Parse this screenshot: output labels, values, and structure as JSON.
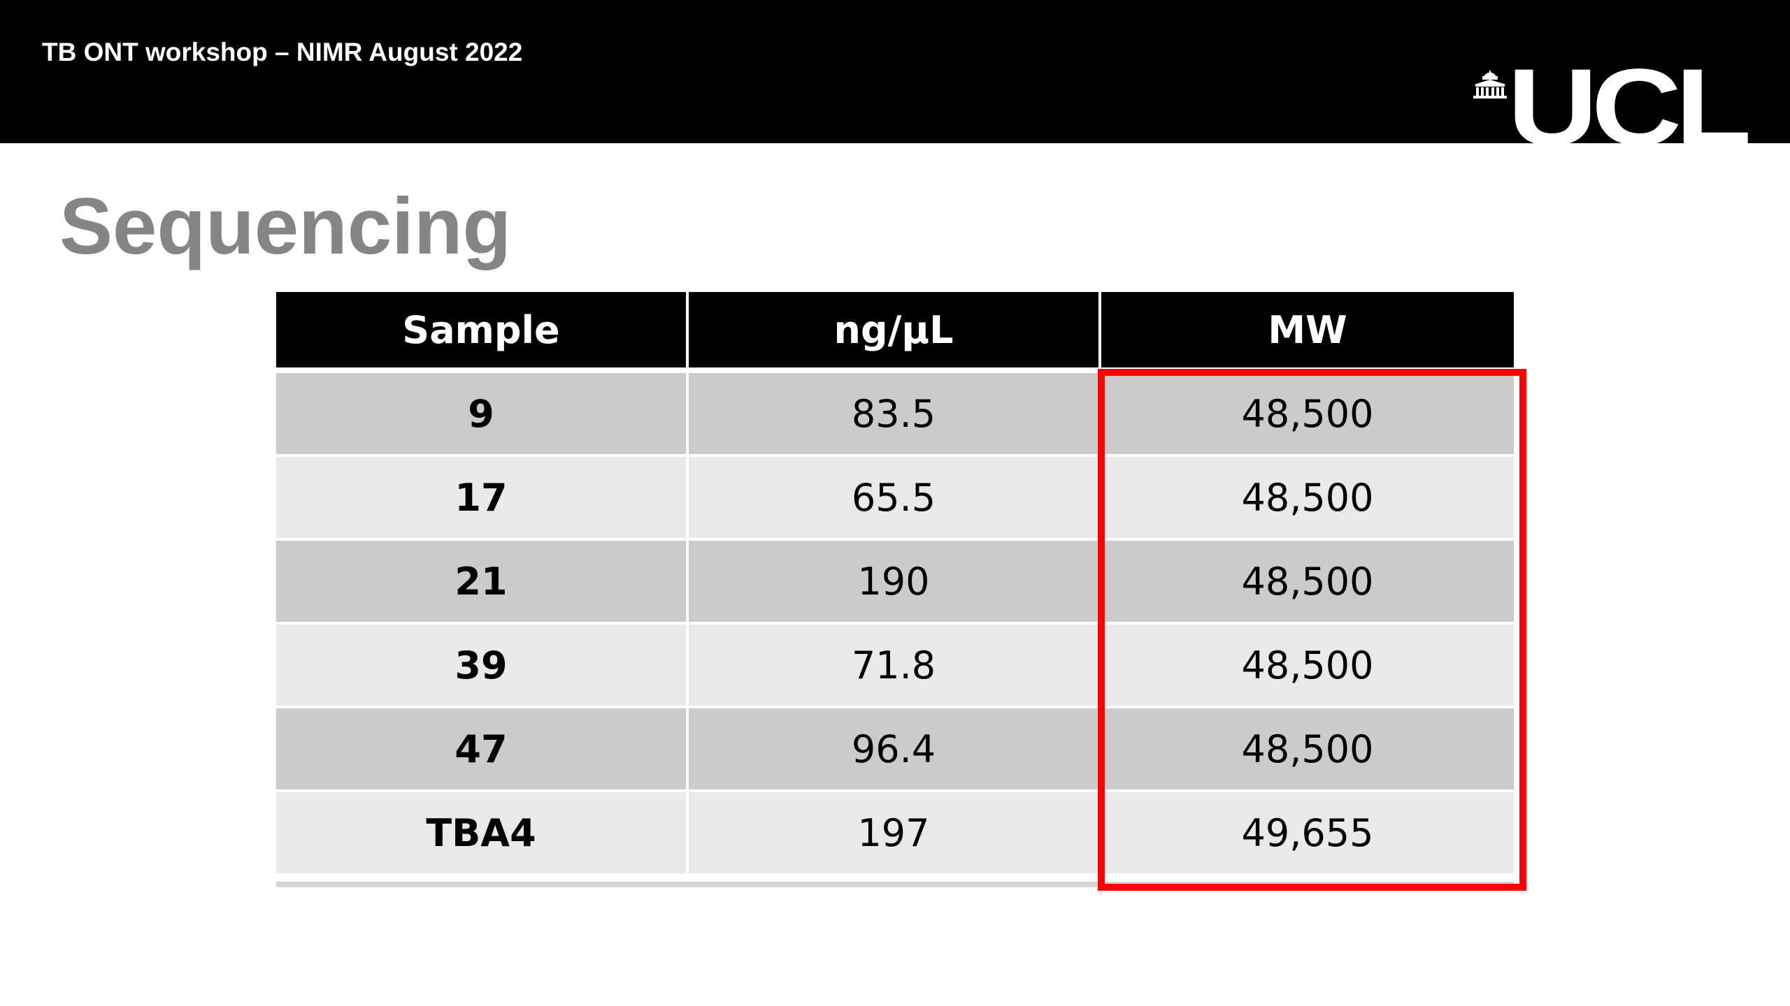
{
  "header": {
    "text": "TB ONT workshop – NIMR August 2022",
    "logo_text": "UCL",
    "logo_icon": "portico-icon"
  },
  "title": "Sequencing",
  "table": {
    "columns": [
      "Sample",
      "ng/µL",
      "MW"
    ],
    "rows": [
      {
        "sample": "9",
        "conc": "83.5",
        "mw": "48,500"
      },
      {
        "sample": "17",
        "conc": "65.5",
        "mw": "48,500"
      },
      {
        "sample": "21",
        "conc": "190",
        "mw": "48,500"
      },
      {
        "sample": "39",
        "conc": "71.8",
        "mw": "48,500"
      },
      {
        "sample": "47",
        "conc": "96.4",
        "mw": "48,500"
      },
      {
        "sample": "TBA4",
        "conc": "197",
        "mw": "49,655"
      }
    ]
  },
  "colors": {
    "header_band": "#000000",
    "title": "#858585",
    "row_dark": "#cbcbcb",
    "row_light": "#e9e9e9",
    "highlight": "#ff0000"
  }
}
